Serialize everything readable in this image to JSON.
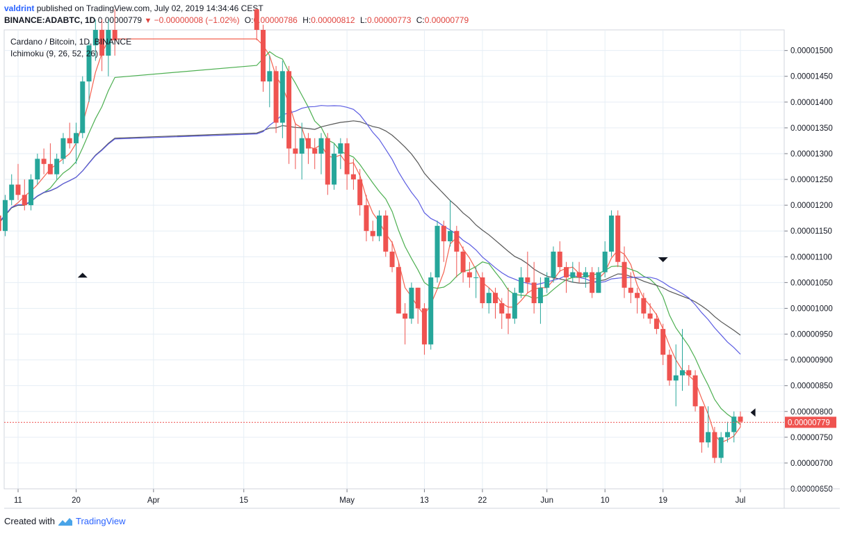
{
  "header": {
    "user": "valdrint",
    "published": "published on TradingView.com, July 02, 2019 14:34:46 CEST",
    "symbol": "BINANCE:ADABTC, 1D",
    "price": "0.00000779",
    "change_arrow": "▼",
    "change": "−0.00000008 (−1.02%)",
    "ohlc": [
      {
        "k": "O:",
        "v": "0.00000786"
      },
      {
        "k": "H:",
        "v": "0.00000812"
      },
      {
        "k": "L:",
        "v": "0.00000773"
      },
      {
        "k": "C:",
        "v": "0.00000779"
      }
    ]
  },
  "legend": {
    "title": "Cardano / Bitcoin, 1D, BINANCE",
    "indicator": "Ichimoku (9, 26, 52, 26)"
  },
  "footer": {
    "created_with": "Created with",
    "brand": "TradingView"
  },
  "colors": {
    "up": "#26a69a",
    "down": "#ef5350",
    "red_line": "#f4614f",
    "green_line": "#4caf50",
    "gray_line": "#555555",
    "blue_line": "#5b5ce2",
    "price_line": "#ef5350",
    "grid": "#e6eef5"
  },
  "chart_data": {
    "type": "candlestick",
    "y_ticks": [
      "0.00001500",
      "0.00001450",
      "0.00001400",
      "0.00001350",
      "0.00001300",
      "0.00001250",
      "0.00001200",
      "0.00001150",
      "0.00001100",
      "0.00001050",
      "0.00001000",
      "0.00000950",
      "0.00000900",
      "0.00000850",
      "0.00000800",
      "0.00000750",
      "0.00000700",
      "0.00000650"
    ],
    "y_range": [
      6.5e-06,
      1.54e-05
    ],
    "x_ticks": [
      "11",
      "20",
      "Apr",
      "15",
      "May",
      "13",
      "22",
      "Jun",
      "10",
      "19",
      "Jul"
    ],
    "last_price_label": "0.00000779",
    "last_price": 7.79e-06,
    "markers": [
      {
        "type": "up-triangle",
        "date": "Mar 21",
        "value": 1.065e-05
      },
      {
        "type": "down-triangle",
        "date": "Jun 19",
        "value": 1.095e-05
      },
      {
        "type": "left-triangle",
        "date": "Jul 3",
        "value": 7.98e-06
      }
    ],
    "candles": [
      [
        "Mar 07",
        1.12e-05,
        1.19e-05,
        1.1e-05,
        1.18e-05
      ],
      [
        "Mar 08",
        1.18e-05,
        1.21e-05,
        1.13e-05,
        1.15e-05
      ],
      [
        "Mar 09",
        1.15e-05,
        1.22e-05,
        1.14e-05,
        1.21e-05
      ],
      [
        "Mar 10",
        1.21e-05,
        1.26e-05,
        1.2e-05,
        1.24e-05
      ],
      [
        "Mar 11",
        1.24e-05,
        1.28e-05,
        1.21e-05,
        1.22e-05
      ],
      [
        "Mar 12",
        1.22e-05,
        1.25e-05,
        1.19e-05,
        1.2e-05
      ],
      [
        "Mar 13",
        1.2e-05,
        1.26e-05,
        1.19e-05,
        1.25e-05
      ],
      [
        "Mar 14",
        1.25e-05,
        1.3e-05,
        1.24e-05,
        1.29e-05
      ],
      [
        "Mar 15",
        1.29e-05,
        1.31e-05,
        1.26e-05,
        1.28e-05
      ],
      [
        "Mar 16",
        1.28e-05,
        1.32e-05,
        1.26e-05,
        1.26e-05
      ],
      [
        "Mar 17",
        1.26e-05,
        1.3e-05,
        1.25e-05,
        1.29e-05
      ],
      [
        "Mar 18",
        1.29e-05,
        1.34e-05,
        1.28e-05,
        1.33e-05
      ],
      [
        "Mar 19",
        1.33e-05,
        1.36e-05,
        1.31e-05,
        1.32e-05
      ],
      [
        "Mar 20",
        1.32e-05,
        1.36e-05,
        1.28e-05,
        1.34e-05
      ],
      [
        "Mar 21",
        1.34e-05,
        1.45e-05,
        1.33e-05,
        1.44e-05
      ],
      [
        "Mar 22",
        1.44e-05,
        1.52e-05,
        1.4e-05,
        1.51e-05
      ],
      [
        "Mar 23",
        1.51e-05,
        1.56e-05,
        1.48e-05,
        1.54e-05
      ],
      [
        "Mar 24",
        1.54e-05,
        1.56e-05,
        1.46e-05,
        1.49e-05
      ],
      [
        "Mar 25",
        1.49e-05,
        1.56e-05,
        1.45e-05,
        1.54e-05
      ],
      [
        "Mar 26",
        1.54e-05,
        1.58e-05,
        1.49e-05,
        1.52e-05
      ],
      [
        "Apr 17",
        1.58e-05,
        1.58e-05,
        1.52e-05,
        1.54e-05
      ],
      [
        "Apr 18",
        1.54e-05,
        1.55e-05,
        1.42e-05,
        1.44e-05
      ],
      [
        "Apr 19",
        1.44e-05,
        1.49e-05,
        1.39e-05,
        1.46e-05
      ],
      [
        "Apr 20",
        1.46e-05,
        1.47e-05,
        1.34e-05,
        1.36e-05
      ],
      [
        "Apr 21",
        1.36e-05,
        1.48e-05,
        1.33e-05,
        1.46e-05
      ],
      [
        "Apr 22",
        1.46e-05,
        1.47e-05,
        1.28e-05,
        1.31e-05
      ],
      [
        "Apr 23",
        1.31e-05,
        1.36e-05,
        1.27e-05,
        1.3e-05
      ],
      [
        "Apr 24",
        1.3e-05,
        1.36e-05,
        1.25e-05,
        1.33e-05
      ],
      [
        "Apr 25",
        1.33e-05,
        1.34e-05,
        1.28e-05,
        1.31e-05
      ],
      [
        "Apr 26",
        1.31e-05,
        1.33e-05,
        1.27e-05,
        1.3e-05
      ],
      [
        "Apr 27",
        1.3e-05,
        1.34e-05,
        1.26e-05,
        1.33e-05
      ],
      [
        "Apr 28",
        1.33e-05,
        1.34e-05,
        1.22e-05,
        1.24e-05
      ],
      [
        "Apr 29",
        1.24e-05,
        1.32e-05,
        1.23e-05,
        1.3e-05
      ],
      [
        "Apr 30",
        1.3e-05,
        1.33e-05,
        1.27e-05,
        1.32e-05
      ],
      [
        "May 01",
        1.32e-05,
        1.33e-05,
        1.23e-05,
        1.26e-05
      ],
      [
        "May 02",
        1.26e-05,
        1.29e-05,
        1.23e-05,
        1.25e-05
      ],
      [
        "May 03",
        1.25e-05,
        1.27e-05,
        1.18e-05,
        1.2e-05
      ],
      [
        "May 04",
        1.2e-05,
        1.22e-05,
        1.13e-05,
        1.15e-05
      ],
      [
        "May 05",
        1.15e-05,
        1.17e-05,
        1.13e-05,
        1.14e-05
      ],
      [
        "May 06",
        1.14e-05,
        1.19e-05,
        1.13e-05,
        1.18e-05
      ],
      [
        "May 07",
        1.18e-05,
        1.19e-05,
        1.1e-05,
        1.11e-05
      ],
      [
        "May 08",
        1.11e-05,
        1.13e-05,
        1.07e-05,
        1.08e-05
      ],
      [
        "May 09",
        1.08e-05,
        1.09e-05,
        9.9e-06,
        9.9e-06
      ],
      [
        "May 10",
        9.9e-06,
        1.01e-05,
        9.3e-06,
        9.8e-06
      ],
      [
        "May 11",
        9.8e-06,
        1.05e-05,
        9.7e-06,
        1.04e-05
      ],
      [
        "May 12",
        1.04e-05,
        1.04e-05,
        9.7e-06,
        1e-05
      ],
      [
        "May 13",
        1e-05,
        1.01e-05,
        9.1e-06,
        9.3e-06
      ],
      [
        "May 14",
        9.3e-06,
        1.07e-05,
        9.2e-06,
        1.06e-05
      ],
      [
        "May 15",
        1.06e-05,
        1.17e-05,
        1.05e-05,
        1.16e-05
      ],
      [
        "May 16",
        1.16e-05,
        1.17e-05,
        1.09e-05,
        1.13e-05
      ],
      [
        "May 17",
        1.13e-05,
        1.21e-05,
        1.12e-05,
        1.15e-05
      ],
      [
        "May 18",
        1.15e-05,
        1.16e-05,
        1.06e-05,
        1.11e-05
      ],
      [
        "May 19",
        1.11e-05,
        1.12e-05,
        1.05e-05,
        1.07e-05
      ],
      [
        "May 20",
        1.07e-05,
        1.09e-05,
        1.04e-05,
        1.06e-05
      ],
      [
        "May 21",
        1.06e-05,
        1.08e-05,
        1.02e-05,
        1.06e-05
      ],
      [
        "May 22",
        1.06e-05,
        1.07e-05,
        1e-05,
        1.01e-05
      ],
      [
        "May 23",
        1.01e-05,
        1.04e-05,
        9.9e-06,
        1.03e-05
      ],
      [
        "May 24",
        1.03e-05,
        1.04e-05,
        9.8e-06,
        1.01e-05
      ],
      [
        "May 25",
        1.01e-05,
        1.02e-05,
        9.6e-06,
        9.9e-06
      ],
      [
        "May 26",
        9.9e-06,
        1.04e-05,
        9.5e-06,
        9.8e-06
      ],
      [
        "May 27",
        9.8e-06,
        1.04e-05,
        9.7e-06,
        1.03e-05
      ],
      [
        "May 28",
        1.03e-05,
        1.08e-05,
        1.02e-05,
        1.06e-05
      ],
      [
        "May 29",
        1.06e-05,
        1.11e-05,
        1.03e-05,
        1.05e-05
      ],
      [
        "May 30",
        1.05e-05,
        1.09e-05,
        9.9e-06,
        1.01e-05
      ],
      [
        "May 31",
        1.01e-05,
        1.06e-05,
        9.7e-06,
        1.04e-05
      ],
      [
        "Jun 01",
        1.04e-05,
        1.07e-05,
        1.03e-05,
        1.06e-05
      ],
      [
        "Jun 02",
        1.06e-05,
        1.12e-05,
        1.05e-05,
        1.11e-05
      ],
      [
        "Jun 03",
        1.11e-05,
        1.13e-05,
        1.07e-05,
        1.08e-05
      ],
      [
        "Jun 04",
        1.08e-05,
        1.09e-05,
        1.03e-05,
        1.06e-05
      ],
      [
        "Jun 05",
        1.06e-05,
        1.09e-05,
        1.05e-05,
        1.07e-05
      ],
      [
        "Jun 06",
        1.07e-05,
        1.09e-05,
        1.05e-05,
        1.06e-05
      ],
      [
        "Jun 07",
        1.06e-05,
        1.08e-05,
        1.04e-05,
        1.07e-05
      ],
      [
        "Jun 08",
        1.07e-05,
        1.08e-05,
        1.02e-05,
        1.03e-05
      ],
      [
        "Jun 09",
        1.03e-05,
        1.08e-05,
        1.03e-05,
        1.07e-05
      ],
      [
        "Jun 10",
        1.07e-05,
        1.13e-05,
        1.06e-05,
        1.11e-05
      ],
      [
        "Jun 11",
        1.11e-05,
        1.19e-05,
        1.1e-05,
        1.18e-05
      ],
      [
        "Jun 12",
        1.18e-05,
        1.19e-05,
        1.08e-05,
        1.09e-05
      ],
      [
        "Jun 13",
        1.09e-05,
        1.12e-05,
        1.02e-05,
        1.04e-05
      ],
      [
        "Jun 14",
        1.04e-05,
        1.07e-05,
        1.01e-05,
        1.03e-05
      ],
      [
        "Jun 15",
        1.03e-05,
        1.04e-05,
        9.9e-06,
        1.02e-05
      ],
      [
        "Jun 16",
        1.02e-05,
        1.03e-05,
        9.8e-06,
        9.9e-06
      ],
      [
        "Jun 17",
        9.9e-06,
        1.01e-05,
        9.7e-06,
        9.8e-06
      ],
      [
        "Jun 18",
        9.8e-06,
        9.9e-06,
        9.5e-06,
        9.6e-06
      ],
      [
        "Jun 19",
        9.6e-06,
        9.7e-06,
        8.9e-06,
        9.1e-06
      ],
      [
        "Jun 20",
        9.1e-06,
        9.2e-06,
        8.5e-06,
        8.6e-06
      ],
      [
        "Jun 21",
        8.6e-06,
        9.3e-06,
        8.1e-06,
        8.7e-06
      ],
      [
        "Jun 22",
        8.7e-06,
        9.6e-06,
        8.4e-06,
        8.8e-06
      ],
      [
        "Jun 23",
        8.8e-06,
        8.9e-06,
        8.5e-06,
        8.7e-06
      ],
      [
        "Jun 24",
        8.7e-06,
        8.8e-06,
        8e-06,
        8.1e-06
      ],
      [
        "Jun 25",
        8.1e-06,
        8.1e-06,
        7.2e-06,
        7.4e-06
      ],
      [
        "Jun 26",
        7.4e-06,
        8.1e-06,
        7.3e-06,
        7.6e-06
      ],
      [
        "Jun 27",
        7.6e-06,
        7.7e-06,
        7e-06,
        7.1e-06
      ],
      [
        "Jun 28",
        7.1e-06,
        7.6e-06,
        7e-06,
        7.5e-06
      ],
      [
        "Jun 29",
        7.5e-06,
        7.8e-06,
        7.4e-06,
        7.6e-06
      ],
      [
        "Jun 30",
        7.6e-06,
        8e-06,
        7.4e-06,
        7.9e-06
      ],
      [
        "Jul 01",
        7.9e-06,
        8e-06,
        7.7e-06,
        7.8e-06
      ]
    ]
  }
}
